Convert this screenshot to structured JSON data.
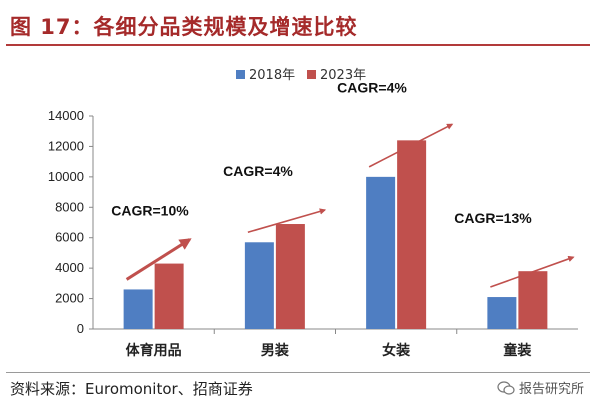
{
  "figure": {
    "title": "图 17：各细分品类规模及增速比较",
    "source": "资料来源：Euromonitor、招商证券",
    "watermark": "报告研究所"
  },
  "chart_data": {
    "type": "bar",
    "title": "",
    "xlabel": "",
    "ylabel": "",
    "categories": [
      "体育用品",
      "男装",
      "女装",
      "童装"
    ],
    "series": [
      {
        "name": "2018年",
        "values": [
          2600,
          5700,
          10000,
          2100
        ]
      },
      {
        "name": "2023年",
        "values": [
          4300,
          6900,
          12400,
          3800
        ]
      }
    ],
    "ylim": [
      0,
      14000
    ],
    "yticks": [
      0,
      2000,
      4000,
      6000,
      8000,
      10000,
      12000,
      14000
    ],
    "grid": false,
    "legend_position": "top-center",
    "annotations": [
      "CAGR=10%",
      "CAGR=4%",
      "CAGR=4%",
      "CAGR=13%"
    ],
    "colors": {
      "2018年": "#4f7ec2",
      "2023年": "#c0504d",
      "arrow": "#c0504d"
    }
  }
}
